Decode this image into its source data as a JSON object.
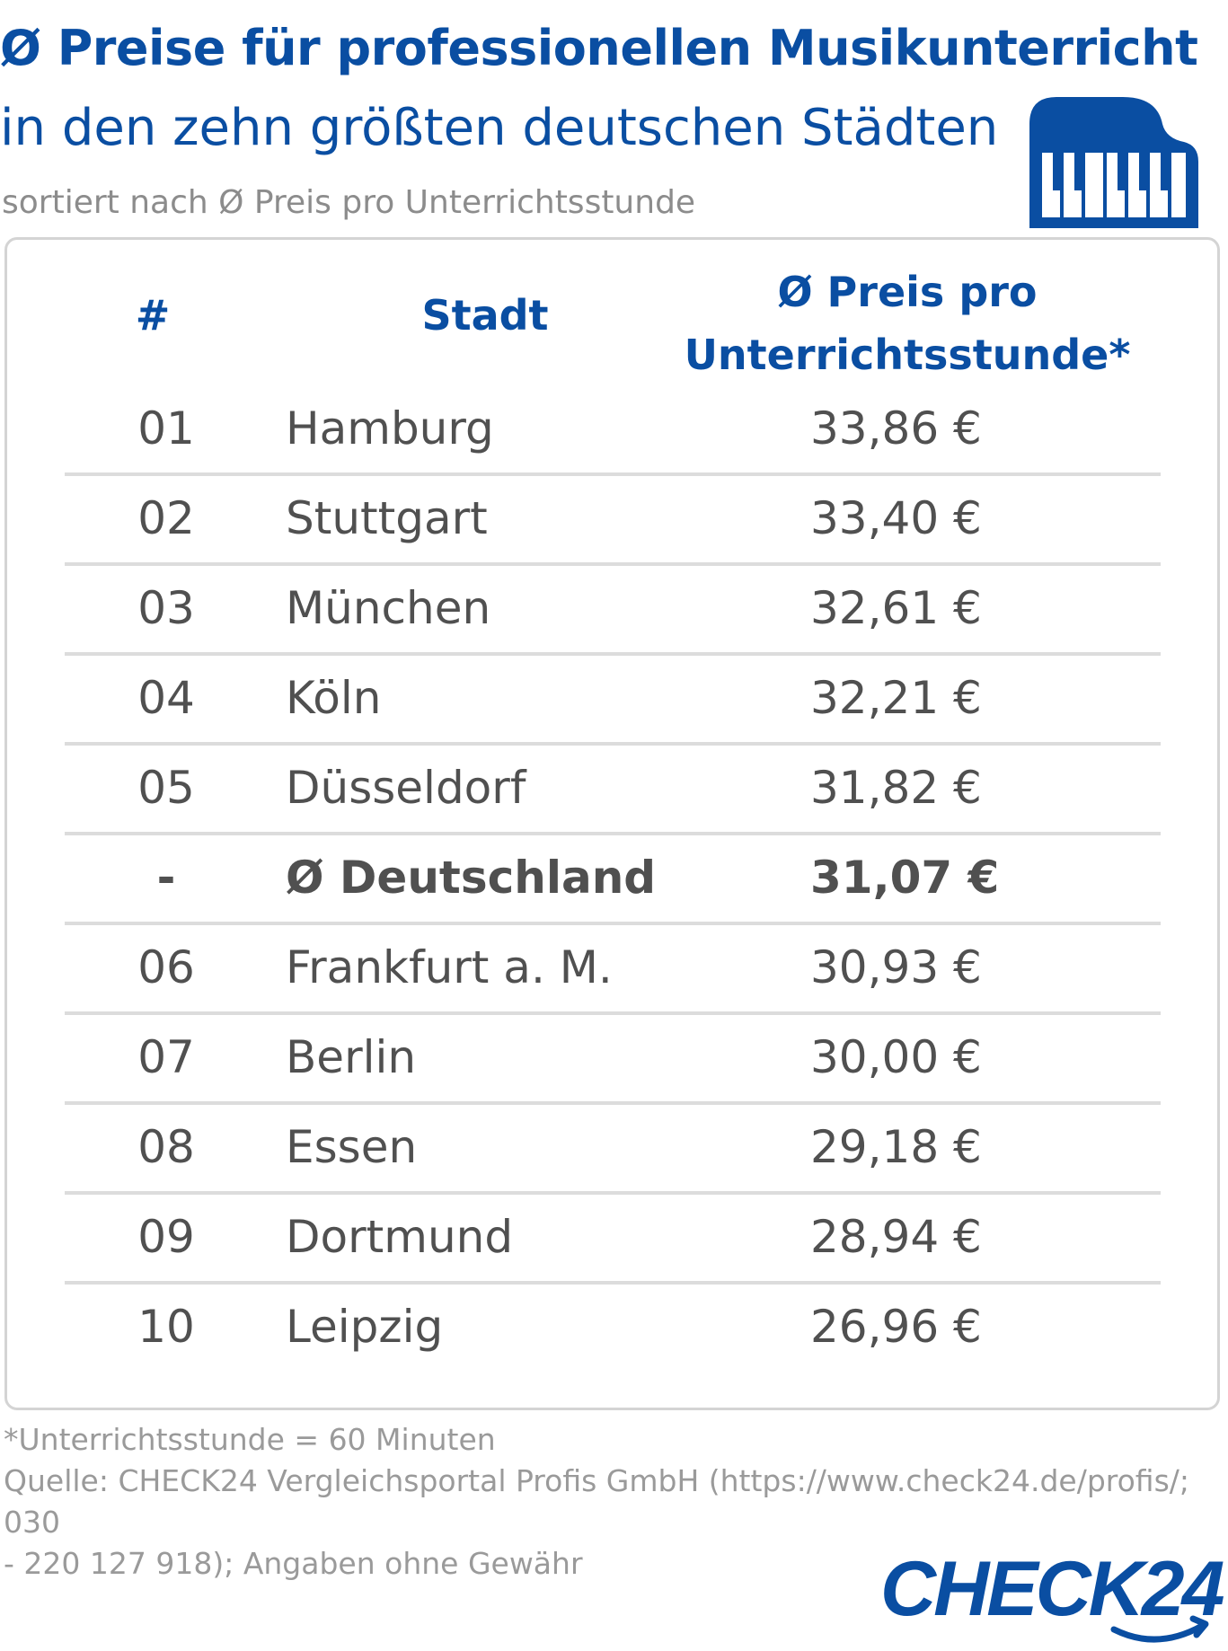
{
  "header": {
    "title": "Ø Preise für professionellen Musikunterricht",
    "subtitle": "in den zehn größten deutschen Städten",
    "sort_note": "sortiert nach Ø Preis pro Unterrichtsstunde"
  },
  "colors": {
    "brand_blue": "#0a4ea2",
    "text_gray": "#505050",
    "note_gray": "#9a9a9a"
  },
  "icons": {
    "header_icon": "piano-icon",
    "brand_logo": "check24-logo"
  },
  "chart_data": {
    "type": "table",
    "columns": [
      "#",
      "Stadt",
      "Ø Preis pro",
      "Unterrichtsstunde*"
    ],
    "rows": [
      {
        "rank": "01",
        "city": "Hamburg",
        "price": "33,86 €",
        "value": 33.86
      },
      {
        "rank": "02",
        "city": "Stuttgart",
        "price": "33,40 €",
        "value": 33.4
      },
      {
        "rank": "03",
        "city": "München",
        "price": "32,61 €",
        "value": 32.61
      },
      {
        "rank": "04",
        "city": "Köln",
        "price": "32,21 €",
        "value": 32.21
      },
      {
        "rank": "05",
        "city": "Düsseldorf",
        "price": "31,82 €",
        "value": 31.82
      },
      {
        "rank": "-",
        "city": "Ø Deutschland",
        "price": "31,07 €",
        "value": 31.07,
        "highlight": true
      },
      {
        "rank": "06",
        "city": "Frankfurt a. M.",
        "price": "30,93 €",
        "value": 30.93
      },
      {
        "rank": "07",
        "city": "Berlin",
        "price": "30,00 €",
        "value": 30.0
      },
      {
        "rank": "08",
        "city": "Essen",
        "price": "29,18 €",
        "value": 29.18
      },
      {
        "rank": "09",
        "city": "Dortmund",
        "price": "28,94 €",
        "value": 28.94
      },
      {
        "rank": "10",
        "city": "Leipzig",
        "price": "26,96 €",
        "value": 26.96
      }
    ]
  },
  "footer": {
    "footnote": "*Unterrichtsstunde = 60 Minuten",
    "source_line1": "Quelle: CHECK24 Vergleichsportal Profis GmbH (https://www.check24.de/profis/;  030",
    "source_line2": "- 220 127 918); Angaben ohne Gewähr",
    "logo_text": "CHECK24"
  }
}
